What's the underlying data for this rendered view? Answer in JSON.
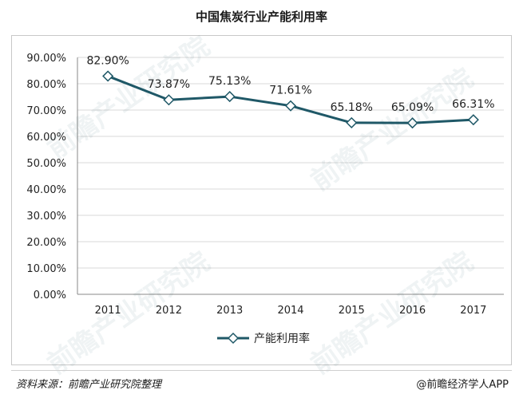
{
  "title": "中国焦炭行业产能利用率",
  "footer": {
    "source": "资料来源：前瞻产业研究院整理",
    "brand": "@前瞻经济学人APP"
  },
  "watermark": {
    "text": "前瞻产业研究院"
  },
  "colors": {
    "series_line": "#1f5867",
    "marker_fill": "#ffffff",
    "grid": "#d9d9d9",
    "axis": "#888888"
  },
  "chart_data": {
    "type": "line",
    "title": "中国焦炭行业产能利用率",
    "categories": [
      "2011",
      "2012",
      "2013",
      "2014",
      "2015",
      "2016",
      "2017"
    ],
    "series": [
      {
        "name": "产能利用率",
        "values": [
          82.9,
          73.87,
          75.13,
          71.61,
          65.18,
          65.09,
          66.31
        ],
        "labels": [
          "82.90%",
          "73.87%",
          "75.13%",
          "71.61%",
          "65.18%",
          "65.09%",
          "66.31%"
        ],
        "marker": "diamond"
      }
    ],
    "ylim": [
      0,
      90
    ],
    "yticks": [
      "0.00%",
      "10.00%",
      "20.00%",
      "30.00%",
      "40.00%",
      "50.00%",
      "60.00%",
      "70.00%",
      "80.00%",
      "90.00%"
    ],
    "grid": true,
    "legend_position": "bottom"
  }
}
